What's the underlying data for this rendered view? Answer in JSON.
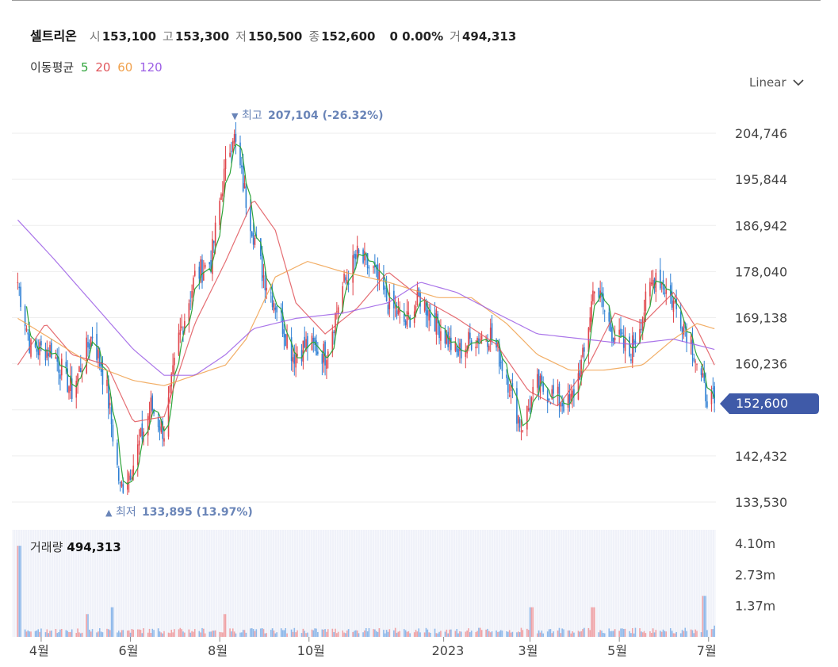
{
  "header": {
    "name": "셀트리온",
    "open_label": "시",
    "open": "153,100",
    "high_label": "고",
    "high": "153,300",
    "low_label": "저",
    "low": "150,500",
    "close_label": "종",
    "close": "152,600",
    "change": "0 0.00%",
    "volume_label": "거",
    "volume": "494,313"
  },
  "ma_legend": {
    "label": "이동평균",
    "ma5": "5",
    "ma20": "20",
    "ma60": "60",
    "ma120": "120",
    "ma5_color": "#2ea43a",
    "ma20_color": "#e0555b",
    "ma60_color": "#f0a04b",
    "ma120_color": "#9b5de5"
  },
  "scale_select": {
    "value": "Linear",
    "icon": "chevron-down-icon"
  },
  "volume_panel": {
    "label": "거래량",
    "value": "494,313"
  },
  "price_tag": {
    "value": "152,600",
    "color": "#3f5aa8"
  },
  "colors": {
    "up": "#e0444a",
    "down": "#2d7fd4",
    "annotation": "#6a85b8",
    "grid": "#eeeeee"
  },
  "chart_data": {
    "type": "candlestick",
    "title": "",
    "xlabel": "",
    "ylabel": "",
    "ylim": [
      133530,
      204746
    ],
    "yticks": [
      204746,
      195844,
      186942,
      178040,
      169138,
      160236,
      142432,
      133530
    ],
    "ytick_labels": [
      "204,746",
      "195,844",
      "186,942",
      "178,040",
      "169,138",
      "160,236",
      "142,432",
      "133,530"
    ],
    "xticks": [
      {
        "date": "2022-04",
        "label": "4월"
      },
      {
        "date": "2022-06",
        "label": "6월"
      },
      {
        "date": "2022-08",
        "label": "8월"
      },
      {
        "date": "2022-10",
        "label": "10월"
      },
      {
        "date": "2023-01",
        "label": "2023"
      },
      {
        "date": "2023-03",
        "label": "3월"
      },
      {
        "date": "2023-05",
        "label": "5월"
      },
      {
        "date": "2023-07",
        "label": "7월"
      }
    ],
    "max_annotation": {
      "marker": "▼",
      "label": "최고",
      "value": "207,104",
      "pct": "(-26.32%)",
      "price": 207104,
      "date": "2022-08-08"
    },
    "min_annotation": {
      "marker": "▲",
      "label": "최저",
      "value": "133,895",
      "pct": "(13.97%)",
      "price": 133895,
      "date": "2022-05-25"
    },
    "last_price": 152600,
    "close_path": [
      [
        "2022-03-16",
        176000
      ],
      [
        "2022-03-25",
        163000
      ],
      [
        "2022-04-08",
        163000
      ],
      [
        "2022-04-22",
        155000
      ],
      [
        "2022-05-06",
        166000
      ],
      [
        "2022-05-16",
        155000
      ],
      [
        "2022-05-25",
        136000
      ],
      [
        "2022-06-03",
        141000
      ],
      [
        "2022-06-15",
        152000
      ],
      [
        "2022-06-24",
        147000
      ],
      [
        "2022-07-04",
        165000
      ],
      [
        "2022-07-15",
        177000
      ],
      [
        "2022-07-26",
        180000
      ],
      [
        "2022-08-03",
        195000
      ],
      [
        "2022-08-10",
        205000
      ],
      [
        "2022-08-19",
        192000
      ],
      [
        "2022-08-30",
        178000
      ],
      [
        "2022-09-08",
        172000
      ],
      [
        "2022-09-20",
        162000
      ],
      [
        "2022-09-30",
        164000
      ],
      [
        "2022-10-12",
        162000
      ],
      [
        "2022-10-24",
        175000
      ],
      [
        "2022-11-03",
        181000
      ],
      [
        "2022-11-14",
        178000
      ],
      [
        "2022-11-24",
        172000
      ],
      [
        "2022-12-06",
        168000
      ],
      [
        "2022-12-16",
        173000
      ],
      [
        "2022-12-28",
        168000
      ],
      [
        "2023-01-10",
        162000
      ],
      [
        "2023-01-20",
        165000
      ],
      [
        "2023-02-02",
        166000
      ],
      [
        "2023-02-13",
        158000
      ],
      [
        "2023-02-23",
        148000
      ],
      [
        "2023-03-06",
        156000
      ],
      [
        "2023-03-17",
        154000
      ],
      [
        "2023-03-28",
        152000
      ],
      [
        "2023-04-07",
        162000
      ],
      [
        "2023-04-14",
        176000
      ],
      [
        "2023-04-25",
        167000
      ],
      [
        "2023-05-08",
        162000
      ],
      [
        "2023-05-17",
        170000
      ],
      [
        "2023-05-26",
        178000
      ],
      [
        "2023-06-07",
        172000
      ],
      [
        "2023-06-19",
        165000
      ],
      [
        "2023-06-28",
        155000
      ],
      [
        "2023-07-05",
        152600
      ]
    ],
    "ma20_path": [
      [
        "2022-03-16",
        160000
      ],
      [
        "2022-04-04",
        168000
      ],
      [
        "2022-04-22",
        162000
      ],
      [
        "2022-05-16",
        160000
      ],
      [
        "2022-06-03",
        149000
      ],
      [
        "2022-06-24",
        150000
      ],
      [
        "2022-07-15",
        168000
      ],
      [
        "2022-08-05",
        180000
      ],
      [
        "2022-08-24",
        192000
      ],
      [
        "2022-09-08",
        186000
      ],
      [
        "2022-09-22",
        172000
      ],
      [
        "2022-10-12",
        166000
      ],
      [
        "2022-11-03",
        171000
      ],
      [
        "2022-11-24",
        178000
      ],
      [
        "2022-12-16",
        173000
      ],
      [
        "2023-01-10",
        169000
      ],
      [
        "2023-02-06",
        164000
      ],
      [
        "2023-02-28",
        155000
      ],
      [
        "2023-03-20",
        152000
      ],
      [
        "2023-04-10",
        160000
      ],
      [
        "2023-04-28",
        170000
      ],
      [
        "2023-05-17",
        168000
      ],
      [
        "2023-06-07",
        174000
      ],
      [
        "2023-06-23",
        167000
      ],
      [
        "2023-07-05",
        160000
      ]
    ],
    "ma60_path": [
      [
        "2022-03-16",
        169000
      ],
      [
        "2022-04-08",
        165000
      ],
      [
        "2022-05-06",
        160000
      ],
      [
        "2022-06-03",
        157000
      ],
      [
        "2022-06-24",
        156000
      ],
      [
        "2022-07-15",
        158000
      ],
      [
        "2022-08-05",
        160000
      ],
      [
        "2022-08-19",
        165000
      ],
      [
        "2022-09-08",
        177000
      ],
      [
        "2022-09-30",
        180000
      ],
      [
        "2022-10-24",
        178000
      ],
      [
        "2022-11-24",
        176000
      ],
      [
        "2022-12-28",
        173000
      ],
      [
        "2023-01-20",
        173000
      ],
      [
        "2023-02-13",
        168000
      ],
      [
        "2023-03-06",
        162000
      ],
      [
        "2023-03-28",
        159000
      ],
      [
        "2023-04-21",
        159000
      ],
      [
        "2023-05-17",
        160000
      ],
      [
        "2023-06-07",
        165000
      ],
      [
        "2023-06-23",
        168000
      ],
      [
        "2023-07-05",
        167000
      ]
    ],
    "ma120_path": [
      [
        "2022-03-16",
        188000
      ],
      [
        "2022-04-08",
        181000
      ],
      [
        "2022-05-06",
        172000
      ],
      [
        "2022-06-03",
        163000
      ],
      [
        "2022-06-24",
        158000
      ],
      [
        "2022-07-15",
        158000
      ],
      [
        "2022-08-05",
        162000
      ],
      [
        "2022-08-24",
        167000
      ],
      [
        "2022-09-22",
        169000
      ],
      [
        "2022-10-24",
        170000
      ],
      [
        "2022-11-24",
        172000
      ],
      [
        "2022-12-16",
        176000
      ],
      [
        "2023-01-10",
        174000
      ],
      [
        "2023-02-06",
        170000
      ],
      [
        "2023-03-06",
        166000
      ],
      [
        "2023-04-07",
        165000
      ],
      [
        "2023-05-08",
        164000
      ],
      [
        "2023-06-07",
        165000
      ],
      [
        "2023-07-05",
        163000
      ]
    ],
    "volume": {
      "yticks": [
        4100000,
        2730000,
        1370000
      ],
      "ytick_labels": [
        "4.10m",
        "2.73m",
        "1.37m"
      ],
      "last": 494313,
      "spikes": [
        {
          "date": "2022-03-17",
          "value": 4000000
        },
        {
          "date": "2022-05-20",
          "value": 1300000
        },
        {
          "date": "2022-05-02",
          "value": 1000000
        },
        {
          "date": "2022-08-05",
          "value": 1000000
        },
        {
          "date": "2023-03-02",
          "value": 1300000
        },
        {
          "date": "2023-04-13",
          "value": 1300000
        },
        {
          "date": "2023-06-28",
          "value": 1800000
        }
      ]
    }
  }
}
